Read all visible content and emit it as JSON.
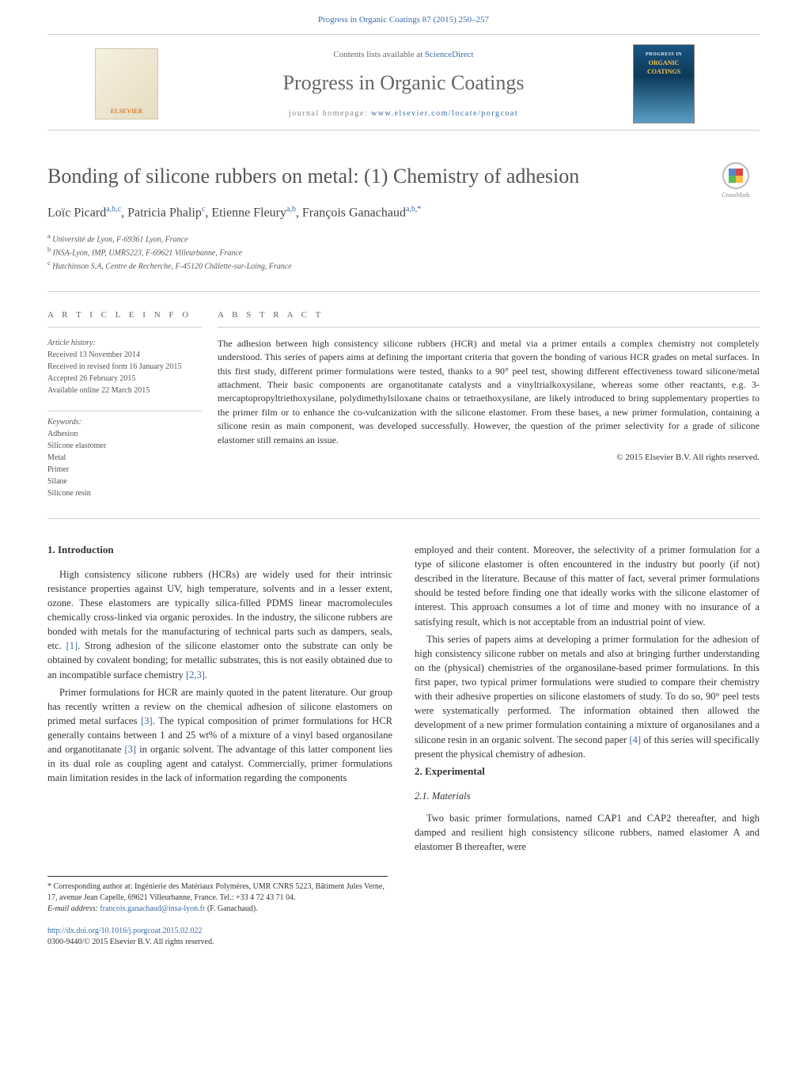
{
  "header": {
    "citation_link_text": "Progress in Organic Coatings 87 (2015) 250–257",
    "contents_prefix": "Contents lists available at ",
    "contents_linktext": "ScienceDirect",
    "journal_name": "Progress in Organic Coatings",
    "homepage_prefix": "journal homepage: ",
    "homepage_linktext": "www.elsevier.com/locate/porgcoat",
    "publisher_logo_text": "ELSEVIER",
    "cover_line1": "PROGRESS IN",
    "cover_line2": "ORGANIC",
    "cover_line3": "COATINGS"
  },
  "article": {
    "title": "Bonding of silicone rubbers on metal: (1) Chemistry of adhesion",
    "crossmark_label": "CrossMark",
    "authors_html": "Loïc Picard",
    "author1": "Loïc Picard",
    "author1_sup": "a,b,c",
    "author2": "Patricia Phalip",
    "author2_sup": "c",
    "author3": "Etienne Fleury",
    "author3_sup": "a,b",
    "author4": "François Ganachaud",
    "author4_sup": "a,b,*",
    "aff_a": "Université de Lyon, F-69361 Lyon, France",
    "aff_b": "INSA-Lyon, IMP, UMR5223, F-69621 Villeurbanne, France",
    "aff_c": "Hutchinson S.A, Centre de Recherche, F-45120 Châlette-sur-Loing, France"
  },
  "info": {
    "label": "A R T I C L E   I N F O",
    "history_head": "Article history:",
    "received": "Received 13 November 2014",
    "revised": "Received in revised form 16 January 2015",
    "accepted": "Accepted 26 February 2015",
    "online": "Available online 22 March 2015",
    "keywords_head": "Keywords:",
    "kw1": "Adhesion",
    "kw2": "Silicone elastomer",
    "kw3": "Metal",
    "kw4": "Primer",
    "kw5": "Silane",
    "kw6": "Silicone resin"
  },
  "abstract": {
    "label": "A B S T R A C T",
    "text": "The adhesion between high consistency silicone rubbers (HCR) and metal via a primer entails a complex chemistry not completely understood. This series of papers aims at defining the important criteria that govern the bonding of various HCR grades on metal surfaces. In this first study, different primer formulations were tested, thanks to a 90° peel test, showing different effectiveness toward silicone/metal attachment. Their basic components are organotitanate catalysts and a vinyltrialkoxysilane, whereas some other reactants, e.g. 3-mercaptopropyltriethoxysilane, polydimethylsiloxane chains or tetraethoxysilane, are likely introduced to bring supplementary properties to the primer film or to enhance the co-vulcanization with the silicone elastomer. From these bases, a new primer formulation, containing a silicone resin as main component, was developed successfully. However, the question of the primer selectivity for a grade of silicone elastomer still remains an issue.",
    "copyright": "© 2015 Elsevier B.V. All rights reserved."
  },
  "body": {
    "left": {
      "h_intro": "1.  Introduction",
      "p1": "High consistency silicone rubbers (HCRs) are widely used for their intrinsic resistance properties against UV, high temperature, solvents and in a lesser extent, ozone. These elastomers are typically silica-filled PDMS linear macromolecules chemically cross-linked via organic peroxides. In the industry, the silicone rubbers are bonded with metals for the manufacturing of technical parts such as dampers, seals, etc. ",
      "ref1": "[1]",
      "p1b": ". Strong adhesion of the silicone elastomer onto the substrate can only be obtained by covalent bonding; for metallic substrates, this is not easily obtained due to an incompatible surface chemistry ",
      "ref23": "[2,3]",
      "p1c": ".",
      "p2a": "Primer formulations for HCR are mainly quoted in the patent literature. Our group has recently written a review on the chemical adhesion of silicone elastomers on primed metal surfaces ",
      "ref3": "[3]",
      "p2b": ". The typical composition of primer formulations for HCR generally contains between 1 and 25 wt% of a mixture of a vinyl based organosilane and organotitanate ",
      "ref3b": "[3]",
      "p2c": " in organic solvent. The advantage of this latter component lies in its dual role as coupling agent and catalyst. Commercially, primer formulations main limitation resides in the lack of information regarding the components"
    },
    "right": {
      "p3": "employed and their content. Moreover, the selectivity of a primer formulation for a type of silicone elastomer is often encountered in the industry but poorly (if not) described in the literature. Because of this matter of fact, several primer formulations should be tested before finding one that ideally works with the silicone elastomer of interest. This approach consumes a lot of time and money with no insurance of a satisfying result, which is not acceptable from an industrial point of view.",
      "p4a": "This series of papers aims at developing a primer formulation for the adhesion of high consistency silicone rubber on metals and also at bringing further understanding on the (physical) chemistries of the organosilane-based primer formulations. In this first paper, two typical primer formulations were studied to compare their chemistry with their adhesive properties on silicone elastomers of study. To do so, 90° peel tests were systematically performed. The information obtained then allowed the development of a new primer formulation containing a mixture of organosilanes and a silicone resin in an organic solvent. The second paper ",
      "ref4": "[4]",
      "p4b": " of this series will specifically present the physical chemistry of adhesion.",
      "h_exp": "2.  Experimental",
      "h_mat": "2.1.  Materials",
      "p5": "Two basic primer formulations, named CAP1 and CAP2 thereafter, and high damped and resilient high consistency silicone rubbers, named elastomer A and elastomer B thereafter, were"
    }
  },
  "footnotes": {
    "corr": "* Corresponding author at: Ingénierie des Matériaux Polymères, UMR CNRS 5223, Bâtiment Jules Verne, 17, avenue Jean Capelle, 69621 Villeurbanne, France. Tel.: +33 4 72 43 71 04.",
    "email_label": "E-mail address: ",
    "email": "francois.ganachaud@insa-lyon.fr",
    "email_suffix": " (F. Ganachaud)."
  },
  "doi": {
    "link": "http://dx.doi.org/10.1016/j.porgcoat.2015.02.022",
    "issn_line": "0300-9440/© 2015 Elsevier B.V. All rights reserved."
  },
  "colors": {
    "link": "#3a6ba8",
    "text": "#333333",
    "heading_gray": "#555555",
    "rule": "#cccccc"
  }
}
